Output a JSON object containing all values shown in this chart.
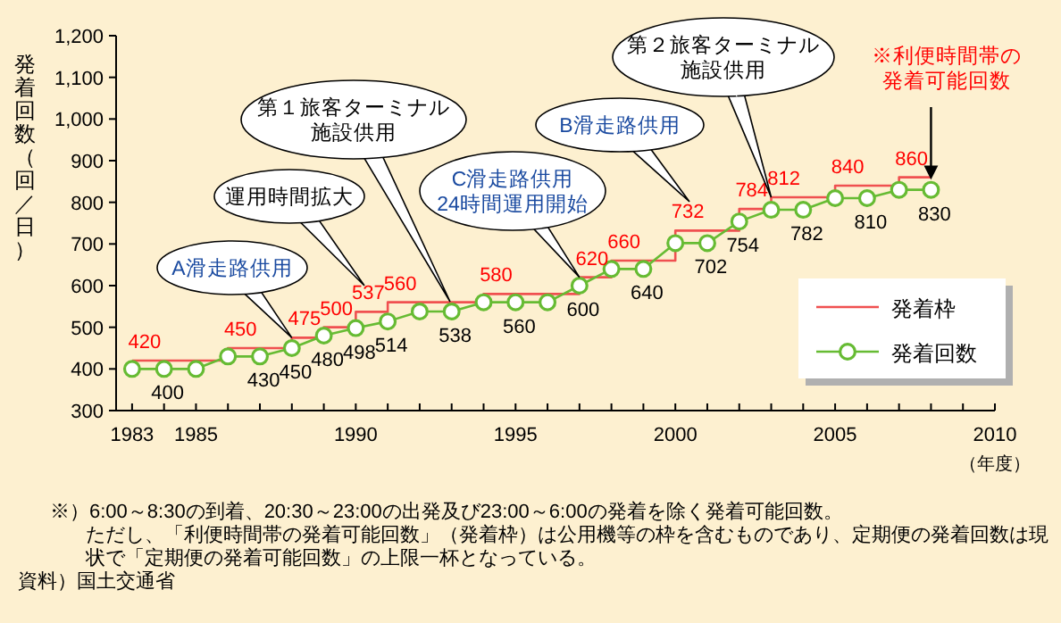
{
  "chart_data": {
    "type": "line",
    "ylabel": "発着回数（回／日）",
    "xlabel": "（年度）",
    "x": [
      1983,
      1984,
      1985,
      1986,
      1987,
      1988,
      1989,
      1990,
      1991,
      1992,
      1993,
      1994,
      1995,
      1996,
      1997,
      1998,
      1999,
      2000,
      2001,
      2002,
      2003,
      2004,
      2005,
      2006,
      2007,
      2008
    ],
    "series": [
      {
        "name": "発着枠",
        "type": "step",
        "color": "#f05050",
        "marker": "none",
        "values": [
          420,
          420,
          420,
          450,
          450,
          475,
          500,
          537,
          560,
          560,
          560,
          580,
          580,
          580,
          620,
          660,
          660,
          732,
          732,
          784,
          812,
          812,
          840,
          840,
          860,
          860
        ],
        "value_labels": [
          "420",
          null,
          null,
          "450",
          null,
          "475",
          "500",
          "537",
          "560",
          null,
          null,
          "580",
          null,
          null,
          "620",
          "660",
          null,
          "732",
          null,
          "784",
          "812",
          null,
          "840",
          null,
          "860",
          null
        ]
      },
      {
        "name": "発着回数",
        "type": "line",
        "color": "#66bb33",
        "marker": "circle",
        "values": [
          400,
          400,
          400,
          430,
          430,
          450,
          480,
          498,
          514,
          538,
          538,
          560,
          560,
          560,
          600,
          640,
          640,
          702,
          702,
          754,
          782,
          782,
          810,
          810,
          830,
          830
        ],
        "value_labels": [
          null,
          "400",
          null,
          null,
          "430",
          "450",
          "480",
          "498",
          "514",
          null,
          "538",
          null,
          "560",
          null,
          "600",
          null,
          "640",
          null,
          "702",
          "754",
          null,
          "782",
          null,
          "810",
          null,
          "830"
        ]
      }
    ],
    "xlim": [
      1982.5,
      2010
    ],
    "xticks": [
      {
        "value": 1983,
        "label": "1983"
      },
      {
        "value": 1984,
        "label": null
      },
      1985,
      {
        "value": 1986,
        "label": null
      },
      {
        "value": 1987,
        "label": null
      },
      {
        "value": 1988,
        "label": null
      },
      {
        "value": 1989,
        "label": null
      },
      1990,
      {
        "value": 1991,
        "label": null
      },
      {
        "value": 1992,
        "label": null
      },
      {
        "value": 1993,
        "label": null
      },
      {
        "value": 1994,
        "label": null
      },
      1995,
      {
        "value": 1996,
        "label": null
      },
      {
        "value": 1997,
        "label": null
      },
      {
        "value": 1998,
        "label": null
      },
      {
        "value": 1999,
        "label": null
      },
      2000,
      {
        "value": 2001,
        "label": null
      },
      {
        "value": 2002,
        "label": null
      },
      {
        "value": 2003,
        "label": null
      },
      {
        "value": 2004,
        "label": null
      },
      2005,
      {
        "value": 2006,
        "label": null
      },
      {
        "value": 2007,
        "label": null
      },
      {
        "value": 2008,
        "label": null
      },
      {
        "value": 2009,
        "label": null
      },
      2010
    ],
    "ylim": [
      300,
      1200
    ],
    "yticks": [
      300,
      400,
      500,
      600,
      700,
      800,
      900,
      {
        "value": 1000,
        "label": "1,000"
      },
      {
        "value": 1100,
        "label": "1,100"
      },
      {
        "value": 1200,
        "label": "1,200"
      }
    ],
    "legend": "bottom right",
    "grid": false,
    "annotations": [
      {
        "text": "A滑走路供用",
        "x": 1988,
        "y": 475
      },
      "運用時間拡大",
      "第１旅客ターミナル施設供用",
      {
        "text": "C滑走路供用\n24時間運用開始",
        "x": 1997,
        "y": 620
      },
      "B滑走路供用",
      {
        "text": "第２旅客ターミナル施設供用",
        "x": 2003,
        "y": 812
      },
      {
        "text": "※利便時間帯の発着可能回数",
        "x": 2008,
        "y": 860
      },
      "※）6:00～8:30の到着、20:30～23:00の出発及び23:00～6:00の発着を除く発着可能回数。",
      "ただし、「利便時間帯の発着可能回数」（発着枠）は公用機等の枠を含むものであり、定期便の発着回数は現状で「定期便の発着可能回数」の上限一杯となっている。",
      "資料）国土交通省"
    ]
  }
}
